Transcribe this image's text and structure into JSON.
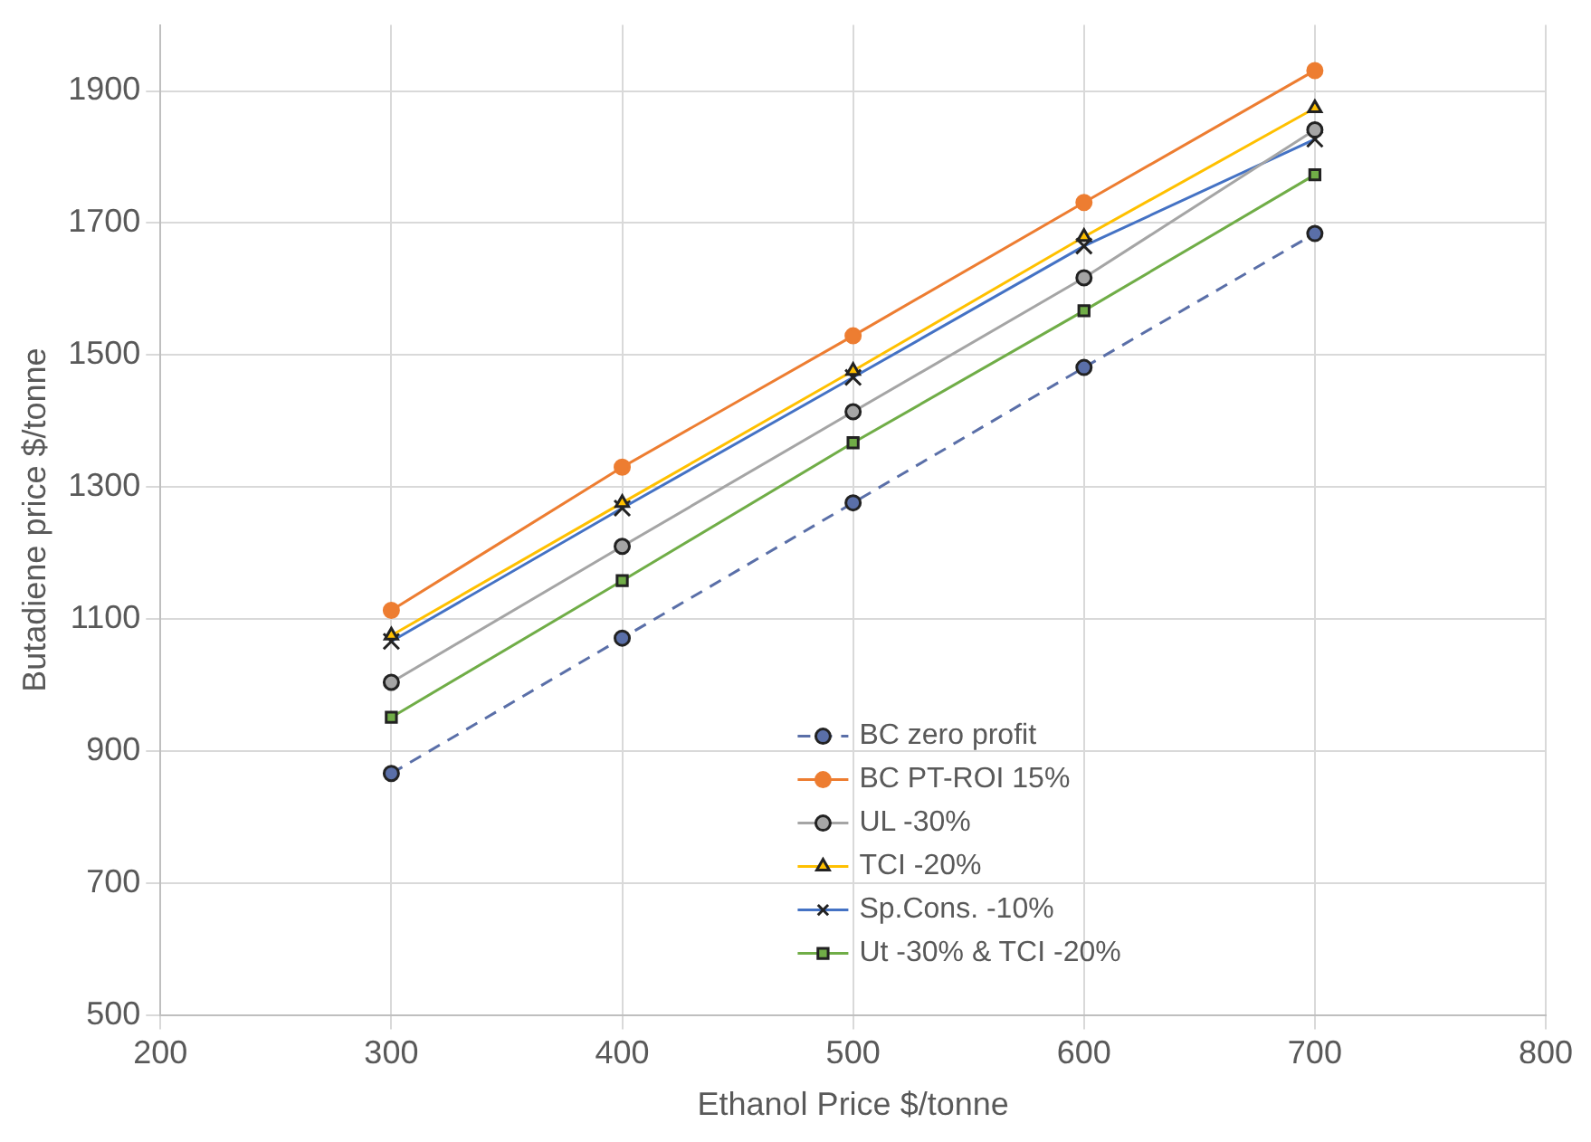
{
  "chart_data": {
    "type": "line",
    "xlabel": "Ethanol Price $/tonne",
    "ylabel": "Butadiene price $/tonne",
    "x": [
      300,
      400,
      500,
      600,
      700
    ],
    "xlim": [
      200,
      800
    ],
    "xticks": [
      200,
      300,
      400,
      500,
      600,
      700,
      800
    ],
    "ylim": [
      500,
      2000
    ],
    "yticks": [
      500,
      700,
      900,
      1100,
      1300,
      1500,
      1700,
      1900
    ],
    "grid": true,
    "legend": "bottom right",
    "series": [
      {
        "name": "BC zero profit",
        "color": "#5a6fa8",
        "marker": "circle",
        "line_style": "dashed",
        "values": [
          866,
          1071,
          1276,
          1481,
          1684
        ]
      },
      {
        "name": "BC PT-ROI 15%",
        "color": "#ed7d31",
        "marker": "circle",
        "values": [
          1113,
          1330,
          1529,
          1731,
          1931
        ]
      },
      {
        "name": "UL -30%",
        "color": "#a5a5a5",
        "marker": "circle",
        "values": [
          1004,
          1210,
          1414,
          1617,
          1841
        ]
      },
      {
        "name": "TCI -20%",
        "color": "#ffc000",
        "marker": "triangle",
        "values": [
          1075,
          1276,
          1476,
          1679,
          1874
        ]
      },
      {
        "name": "Sp.Cons. -10%",
        "color": "#4472c4",
        "marker": "cross",
        "values": [
          1066,
          1268,
          1466,
          1665,
          1827
        ]
      },
      {
        "name": "Ut -30% & TCI -20%",
        "color": "#70ad47",
        "marker": "square",
        "values": [
          951,
          1158,
          1367,
          1567,
          1773
        ]
      }
    ]
  }
}
